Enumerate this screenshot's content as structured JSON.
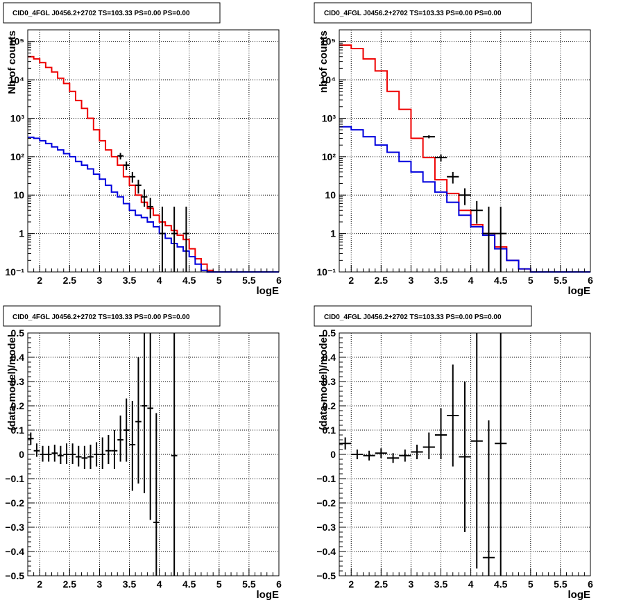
{
  "chart_data": [
    {
      "type": "line",
      "title": "CID0_4FGL J0456.2+2702 TS=103.33 PS=0.00 PS=0.00",
      "xlabel": "logE",
      "ylabel": "Nb of counts",
      "xlim": [
        1.8,
        6.0
      ],
      "ylim": [
        0.1,
        200000
      ],
      "log_y": true,
      "grid": true,
      "xticks": [
        2,
        2.5,
        3,
        3.5,
        4,
        4.5,
        5,
        5.5,
        6
      ],
      "xtick_labels": [
        "2",
        "2.5",
        "3",
        "3.5",
        "4",
        "4.5",
        "5",
        "5.5",
        "6"
      ],
      "yticks": [
        0.1,
        1,
        10,
        100,
        1000,
        10000,
        100000
      ],
      "ytick_labels": [
        "10⁻¹",
        "1",
        "10",
        "10²",
        "10³",
        "10⁴",
        "10⁵"
      ],
      "colors": {
        "total_model": "#ee0000",
        "source_model": "#0000dd",
        "data": "#000000"
      },
      "series": [
        {
          "role": "total_model",
          "kind": "step",
          "edges": [
            1.8,
            1.9,
            2.0,
            2.1,
            2.2,
            2.3,
            2.4,
            2.5,
            2.6,
            2.7,
            2.8,
            2.9,
            3.0,
            3.1,
            3.2,
            3.3,
            3.4,
            3.5,
            3.6,
            3.7,
            3.8,
            3.9,
            4.0,
            4.1,
            4.2,
            4.3,
            4.4,
            4.5,
            4.6,
            4.7,
            4.8,
            4.9,
            5.0,
            5.1,
            5.2,
            5.3,
            5.4,
            5.5,
            5.6,
            5.7,
            5.8,
            5.9,
            6.0
          ],
          "values": [
            40000,
            35000,
            28000,
            21000,
            16000,
            11000,
            8000,
            5000,
            2900,
            1800,
            1000,
            500,
            260,
            150,
            100,
            60,
            30,
            18,
            10,
            6.5,
            4.5,
            3,
            2,
            1.6,
            1.2,
            0.9,
            0.7,
            0.4,
            0.22,
            0.16,
            0.11,
            0.1,
            0.1,
            0.1,
            0.1,
            0.1,
            0.1,
            0.1,
            0.1,
            0.1,
            0.1,
            0.1
          ]
        },
        {
          "role": "source_model",
          "kind": "step",
          "edges": [
            1.8,
            1.9,
            2.0,
            2.1,
            2.2,
            2.3,
            2.4,
            2.5,
            2.6,
            2.7,
            2.8,
            2.9,
            3.0,
            3.1,
            3.2,
            3.3,
            3.4,
            3.5,
            3.6,
            3.7,
            3.8,
            3.9,
            4.0,
            4.1,
            4.2,
            4.3,
            4.4,
            4.5,
            4.6,
            4.7,
            4.8,
            4.9,
            5.0,
            5.1,
            5.2,
            5.3,
            5.4,
            5.5,
            5.6,
            5.7,
            5.8,
            5.9,
            6.0
          ],
          "values": [
            320,
            300,
            260,
            220,
            180,
            150,
            120,
            100,
            75,
            60,
            48,
            35,
            26,
            18,
            12,
            9,
            6,
            4,
            3,
            2.6,
            2,
            1.5,
            1,
            0.75,
            0.55,
            0.45,
            0.35,
            0.25,
            0.16,
            0.11,
            0.1,
            0.1,
            0.1,
            0.1,
            0.1,
            0.1,
            0.1,
            0.1,
            0.1,
            0.1,
            0.1,
            0.1
          ]
        },
        {
          "role": "data",
          "kind": "errorbar",
          "x": [
            3.35,
            3.45,
            3.55,
            3.65,
            3.75,
            3.85,
            4.05,
            4.25,
            4.45
          ],
          "xerr": 0.05,
          "y": [
            105,
            60,
            30,
            18,
            9,
            5,
            1,
            1,
            1
          ],
          "ylow": [
            85,
            45,
            21,
            11,
            5,
            2.5,
            0.1,
            0.1,
            0.1
          ],
          "yhigh": [
            125,
            75,
            40,
            25,
            14,
            8.5,
            5,
            5,
            5
          ]
        }
      ]
    },
    {
      "type": "line",
      "title": "CID0_4FGL J0456.2+2702 TS=103.33 PS=0.00 PS=0.00",
      "xlabel": "logE",
      "ylabel": "nb of counts",
      "xlim": [
        1.8,
        6.0
      ],
      "ylim": [
        0.1,
        200000
      ],
      "log_y": true,
      "grid": true,
      "xticks": [
        2,
        2.5,
        3,
        3.5,
        4,
        4.5,
        5,
        5.5,
        6
      ],
      "xtick_labels": [
        "2",
        "2.5",
        "3",
        "3.5",
        "4",
        "4.5",
        "5",
        "5.5",
        "6"
      ],
      "yticks": [
        0.1,
        1,
        10,
        100,
        1000,
        10000,
        100000
      ],
      "ytick_labels": [
        "10⁻¹",
        "1",
        "10",
        "10²",
        "10³",
        "10⁴",
        "10⁵"
      ],
      "colors": {
        "total_model": "#ee0000",
        "source_model": "#0000dd",
        "data": "#000000"
      },
      "series": [
        {
          "role": "total_model",
          "kind": "step",
          "edges": [
            1.8,
            2.0,
            2.2,
            2.4,
            2.6,
            2.8,
            3.0,
            3.2,
            3.4,
            3.6,
            3.8,
            4.0,
            4.2,
            4.4,
            4.6,
            4.8,
            5.0,
            5.2,
            5.4,
            5.6,
            5.8,
            6.0
          ],
          "values": [
            80000,
            65000,
            35000,
            17000,
            5000,
            1700,
            300,
            95,
            25,
            11,
            4,
            1.7,
            1,
            0.45,
            0.2,
            0.12,
            0.1,
            0.1,
            0.1,
            0.1,
            0.1
          ]
        },
        {
          "role": "source_model",
          "kind": "step",
          "edges": [
            1.8,
            2.0,
            2.2,
            2.4,
            2.6,
            2.8,
            3.0,
            3.2,
            3.4,
            3.6,
            3.8,
            4.0,
            4.2,
            4.4,
            4.6,
            4.8,
            5.0,
            5.2,
            5.4,
            5.6,
            5.8,
            6.0
          ],
          "values": [
            600,
            500,
            330,
            200,
            130,
            75,
            40,
            22,
            12,
            6.5,
            3,
            1.5,
            0.9,
            0.4,
            0.2,
            0.12,
            0.1,
            0.1,
            0.1,
            0.1,
            0.1
          ]
        },
        {
          "role": "data",
          "kind": "errorbar",
          "x": [
            3.3,
            3.5,
            3.7,
            3.9,
            4.1,
            4.3,
            4.5
          ],
          "xerr": 0.1,
          "y": [
            330,
            95,
            30,
            10,
            4,
            1,
            1
          ],
          "ylow": [
            300,
            75,
            20,
            5.5,
            1.8,
            0.1,
            0.1
          ],
          "yhigh": [
            360,
            115,
            40,
            15,
            7,
            5,
            5
          ]
        }
      ]
    },
    {
      "type": "scatter",
      "title": "CID0_4FGL J0456.2+2702 TS=103.33 PS=0.00 PS=0.00",
      "xlabel": "logE",
      "ylabel": "(data-model)/model",
      "xlim": [
        1.8,
        6.0
      ],
      "ylim": [
        -0.5,
        0.5
      ],
      "grid": true,
      "xticks": [
        2,
        2.5,
        3,
        3.5,
        4,
        4.5,
        5,
        5.5,
        6
      ],
      "xtick_labels": [
        "2",
        "2.5",
        "3",
        "3.5",
        "4",
        "4.5",
        "5",
        "5.5",
        "6"
      ],
      "yticks": [
        -0.5,
        -0.4,
        -0.3,
        -0.2,
        -0.1,
        0,
        0.1,
        0.2,
        0.3,
        0.4,
        0.5
      ],
      "ytick_labels": [
        "−0.5",
        "−0.4",
        "−0.3",
        "−0.2",
        "−0.1",
        "0",
        "0.1",
        "0.2",
        "0.3",
        "0.4",
        "0.5"
      ],
      "colors": {
        "data": "#000000"
      },
      "series": [
        {
          "role": "residuals",
          "kind": "errorbar",
          "xerr": 0.05,
          "x": [
            1.85,
            1.95,
            2.05,
            2.15,
            2.25,
            2.35,
            2.45,
            2.55,
            2.65,
            2.75,
            2.85,
            2.95,
            3.05,
            3.15,
            3.25,
            3.35,
            3.45,
            3.55,
            3.65,
            3.75,
            3.85,
            3.95,
            4.25
          ],
          "y": [
            0.065,
            0.015,
            0.0,
            0.0,
            0.005,
            -0.005,
            0.0,
            0.0,
            -0.01,
            -0.015,
            -0.01,
            0.0,
            0.0,
            0.015,
            0.015,
            0.06,
            0.1,
            0.04,
            0.135,
            0.2,
            0.19,
            -0.28,
            -0.005
          ],
          "ylow": [
            0.04,
            -0.01,
            -0.03,
            -0.03,
            -0.03,
            -0.04,
            -0.04,
            -0.04,
            -0.05,
            -0.06,
            -0.06,
            -0.05,
            -0.06,
            -0.04,
            -0.06,
            -0.03,
            -0.03,
            -0.15,
            -0.12,
            -0.16,
            -0.27,
            -0.5,
            -0.5
          ],
          "yhigh": [
            0.09,
            0.045,
            0.035,
            0.035,
            0.04,
            0.035,
            0.045,
            0.045,
            0.035,
            0.035,
            0.04,
            0.05,
            0.07,
            0.08,
            0.1,
            0.16,
            0.23,
            0.22,
            0.4,
            0.5,
            0.5,
            0.17,
            0.5
          ]
        }
      ]
    },
    {
      "type": "scatter",
      "title": "CID0_4FGL J0456.2+2702 TS=103.33 PS=0.00 PS=0.00",
      "xlabel": "logE",
      "ylabel": "(data-model)/model",
      "xlim": [
        1.8,
        6.0
      ],
      "ylim": [
        -0.5,
        0.5
      ],
      "grid": true,
      "xticks": [
        2,
        2.5,
        3,
        3.5,
        4,
        4.5,
        5,
        5.5,
        6
      ],
      "xtick_labels": [
        "2",
        "2.5",
        "3",
        "3.5",
        "4",
        "4.5",
        "5",
        "5.5",
        "6"
      ],
      "yticks": [
        -0.5,
        -0.4,
        -0.3,
        -0.2,
        -0.1,
        0,
        0.1,
        0.2,
        0.3,
        0.4,
        0.5
      ],
      "ytick_labels": [
        "−0.5",
        "−0.4",
        "−0.3",
        "−0.2",
        "−0.1",
        "0",
        "0.1",
        "0.2",
        "0.3",
        "0.4",
        "0.5"
      ],
      "colors": {
        "data": "#000000"
      },
      "series": [
        {
          "role": "residuals",
          "kind": "errorbar",
          "xerr": 0.1,
          "x": [
            1.9,
            2.1,
            2.3,
            2.5,
            2.7,
            2.9,
            3.1,
            3.3,
            3.5,
            3.7,
            3.9,
            4.1,
            4.3,
            4.5
          ],
          "y": [
            0.045,
            0.0,
            -0.005,
            0.005,
            -0.015,
            -0.005,
            0.01,
            0.03,
            0.08,
            0.16,
            -0.01,
            0.055,
            -0.425,
            0.045
          ],
          "ylow": [
            0.02,
            -0.02,
            -0.025,
            -0.015,
            -0.035,
            -0.03,
            -0.02,
            -0.02,
            -0.02,
            -0.05,
            -0.32,
            -0.47,
            -0.5,
            -0.5
          ],
          "yhigh": [
            0.07,
            0.02,
            0.015,
            0.025,
            0.005,
            0.02,
            0.04,
            0.09,
            0.19,
            0.37,
            0.3,
            0.5,
            0.14,
            0.5
          ]
        }
      ]
    }
  ]
}
